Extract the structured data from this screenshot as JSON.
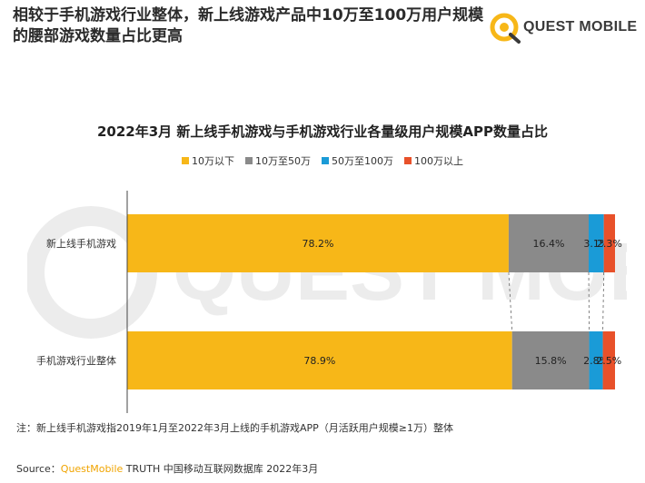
{
  "headline": "相较于手机游戏行业整体，新上线游戏产品中10万至100万用户规模的腰部游戏数量占比更高",
  "logo": {
    "text": "QUEST MOBILE"
  },
  "note": "注：新上线手机游戏指2019年1月至2022年3月上线的手机游戏APP（月活跃用户规模≥1万）整体",
  "source": {
    "prefix": "Source：",
    "brand": "QuestMobile",
    "rest": " TRUTH 中国移动互联网数据库 2022年3月"
  },
  "chart_data": {
    "type": "bar",
    "orientation": "horizontal",
    "stacked": true,
    "percent_stacked": true,
    "title": "2022年3月 新上线手机游戏与手机游戏行业各量级用户规模APP数量占比",
    "categories": [
      "新上线手机游戏",
      "手机游戏行业整体"
    ],
    "series": [
      {
        "name": "10万以下",
        "values": [
          78.2,
          78.9
        ],
        "labels": [
          "78.2%",
          "78.9%"
        ],
        "color": "#f7b718"
      },
      {
        "name": "10万至50万",
        "values": [
          16.4,
          15.8
        ],
        "labels": [
          "16.4%",
          "15.8%"
        ],
        "color": "#8a8a8a"
      },
      {
        "name": "50万至100万",
        "values": [
          3.1,
          2.8
        ],
        "labels": [
          "3.1%",
          "2.8%"
        ],
        "color": "#1a9bd7"
      },
      {
        "name": "100万以上",
        "values": [
          2.3,
          2.5
        ],
        "labels": [
          "2.3%",
          "2.5%"
        ],
        "color": "#e8512a"
      }
    ],
    "xlim": [
      0,
      100
    ],
    "legend_position": "top",
    "grid": false,
    "connector_lines": true
  }
}
